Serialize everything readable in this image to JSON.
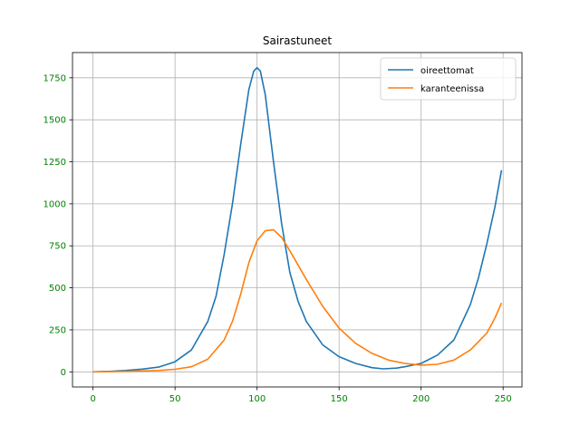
{
  "chart_data": {
    "type": "line",
    "title": "Sairastuneet",
    "xlabel": "",
    "ylabel": "",
    "xlim": [
      -12.5,
      261.5
    ],
    "ylim": [
      -90,
      1900
    ],
    "x_ticks": [
      0,
      50,
      100,
      150,
      200,
      250
    ],
    "y_ticks": [
      0,
      250,
      500,
      750,
      1000,
      1250,
      1500,
      1750
    ],
    "tick_color": "#008000",
    "grid": true,
    "legend_position": "top-right",
    "series": [
      {
        "name": "oireettomat",
        "color": "#1f77b4",
        "x": [
          0,
          10,
          20,
          30,
          40,
          50,
          60,
          70,
          75,
          80,
          85,
          90,
          95,
          98,
          100,
          102,
          105,
          110,
          115,
          120,
          125,
          130,
          140,
          150,
          160,
          170,
          177,
          185,
          190,
          200,
          210,
          220,
          230,
          235,
          240,
          245,
          249
        ],
        "y": [
          0,
          3,
          8,
          16,
          28,
          60,
          130,
          300,
          450,
          700,
          1000,
          1350,
          1680,
          1790,
          1810,
          1790,
          1650,
          1250,
          880,
          590,
          420,
          300,
          160,
          90,
          50,
          25,
          18,
          22,
          30,
          50,
          100,
          190,
          400,
          560,
          760,
          980,
          1200
        ]
      },
      {
        "name": "karanteenissa",
        "color": "#ff7f0e",
        "x": [
          0,
          20,
          40,
          50,
          60,
          70,
          80,
          85,
          90,
          95,
          100,
          105,
          110,
          115,
          120,
          130,
          140,
          150,
          160,
          170,
          180,
          190,
          200,
          210,
          220,
          230,
          240,
          245,
          249
        ],
        "y": [
          0,
          3,
          8,
          15,
          30,
          75,
          190,
          300,
          460,
          650,
          780,
          840,
          845,
          800,
          720,
          550,
          390,
          260,
          170,
          110,
          70,
          50,
          40,
          45,
          70,
          130,
          230,
          320,
          410
        ]
      }
    ]
  }
}
